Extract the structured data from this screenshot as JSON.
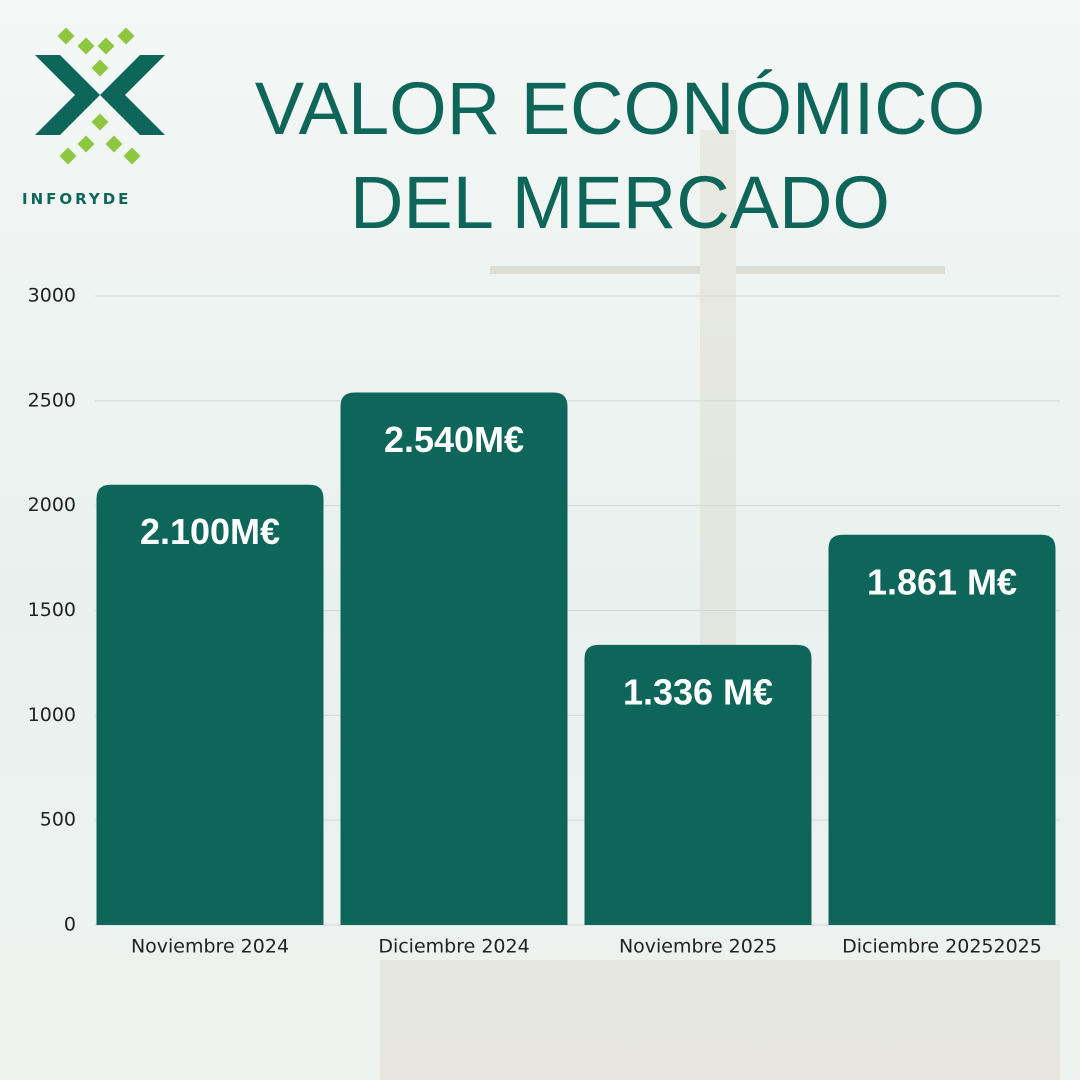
{
  "brand": "INFORYDE",
  "chart_data": {
    "type": "bar",
    "title": "VALOR ECONÓMICO DEL MERCADO",
    "categories": [
      "Noviembre 2024",
      "Diciembre 2024",
      "Noviembre 2025",
      "Diciembre 20252025"
    ],
    "values": [
      2100,
      2540,
      1336,
      1861
    ],
    "value_labels": [
      "2.100M€",
      "2.540M€",
      "1.336 M€",
      "1.861 M€"
    ],
    "color": "#0d6659",
    "ylim": [
      0,
      3000
    ],
    "yticks": [
      0,
      500,
      1000,
      1500,
      2000,
      2500,
      3000
    ],
    "grid": true
  }
}
